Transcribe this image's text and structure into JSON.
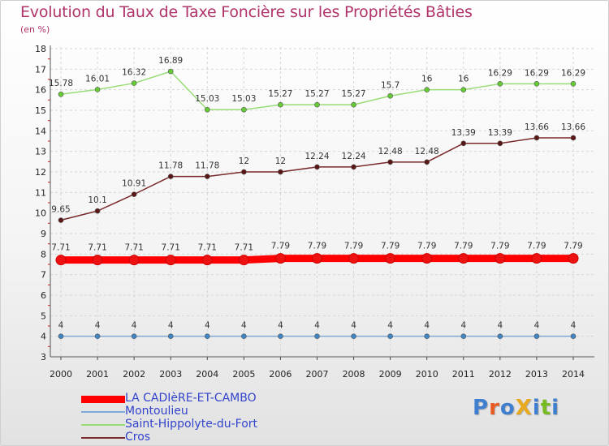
{
  "title": "Evolution du Taux de Taxe Foncière sur les Propriétés Bâties",
  "unit_label": "(en %)",
  "logo_text": "ProXiti",
  "chart_data": {
    "type": "line",
    "title": "Evolution du Taux de Taxe Foncière sur les Propriétés Bâties",
    "ylabel": "(en %)",
    "xlabel": "",
    "x": [
      "2000",
      "2001",
      "2002",
      "2003",
      "2004",
      "2005",
      "2006",
      "2007",
      "2008",
      "2009",
      "2010",
      "2011",
      "2012",
      "2013",
      "2014"
    ],
    "ylim": [
      3,
      18
    ],
    "yticks": [
      3,
      4,
      5,
      6,
      7,
      8,
      9,
      10,
      11,
      12,
      13,
      14,
      15,
      16,
      17,
      18
    ],
    "grid": true,
    "legend_position": "bottom-left",
    "series": [
      {
        "name": "LA CADIèRE-ET-CAMBO",
        "color": "#ff0000",
        "marker_color": "#ee1111",
        "values": [
          7.71,
          7.71,
          7.71,
          7.71,
          7.71,
          7.71,
          7.79,
          7.79,
          7.79,
          7.79,
          7.79,
          7.79,
          7.79,
          7.79,
          7.79
        ],
        "labels": [
          "7.71",
          "7.71",
          "7.71",
          "7.71",
          "7.71",
          "7.71",
          "7.79",
          "7.79",
          "7.79",
          "7.79",
          "7.79",
          "7.79",
          "7.79",
          "7.79",
          "7.79"
        ]
      },
      {
        "name": "Montoulieu",
        "color": "#7fa9d6",
        "marker_color": "#3f86c6",
        "values": [
          4,
          4,
          4,
          4,
          4,
          4,
          4,
          4,
          4,
          4,
          4,
          4,
          4,
          4,
          4
        ],
        "labels": [
          "4",
          "4",
          "4",
          "4",
          "4",
          "4",
          "4",
          "4",
          "4",
          "4",
          "4",
          "4",
          "4",
          "4",
          "4"
        ]
      },
      {
        "name": "Saint-Hippolyte-du-Fort",
        "color": "#99dd77",
        "marker_color": "#66cc33",
        "values": [
          15.78,
          16.01,
          16.32,
          16.89,
          15.03,
          15.03,
          15.27,
          15.27,
          15.27,
          15.7,
          16,
          16,
          16.29,
          16.29,
          16.29
        ],
        "labels": [
          "15.78",
          "16.01",
          "16.32",
          "16.89",
          "15.03",
          "15.03",
          "15.27",
          "15.27",
          "15.27",
          "15.7",
          "16",
          "16",
          "16.29",
          "16.29",
          "16.29"
        ]
      },
      {
        "name": "Cros",
        "color": "#7a2a2a",
        "marker_color": "#5a1515",
        "values": [
          9.65,
          10.1,
          10.91,
          11.78,
          11.78,
          12,
          12,
          12.24,
          12.24,
          12.48,
          12.48,
          13.39,
          13.39,
          13.66,
          13.66
        ],
        "labels": [
          "9.65",
          "10.1",
          "10.91",
          "11.78",
          "11.78",
          "12",
          "12",
          "12.24",
          "12.24",
          "12.48",
          "12.48",
          "13.39",
          "13.39",
          "13.66",
          "13.66"
        ]
      }
    ]
  }
}
